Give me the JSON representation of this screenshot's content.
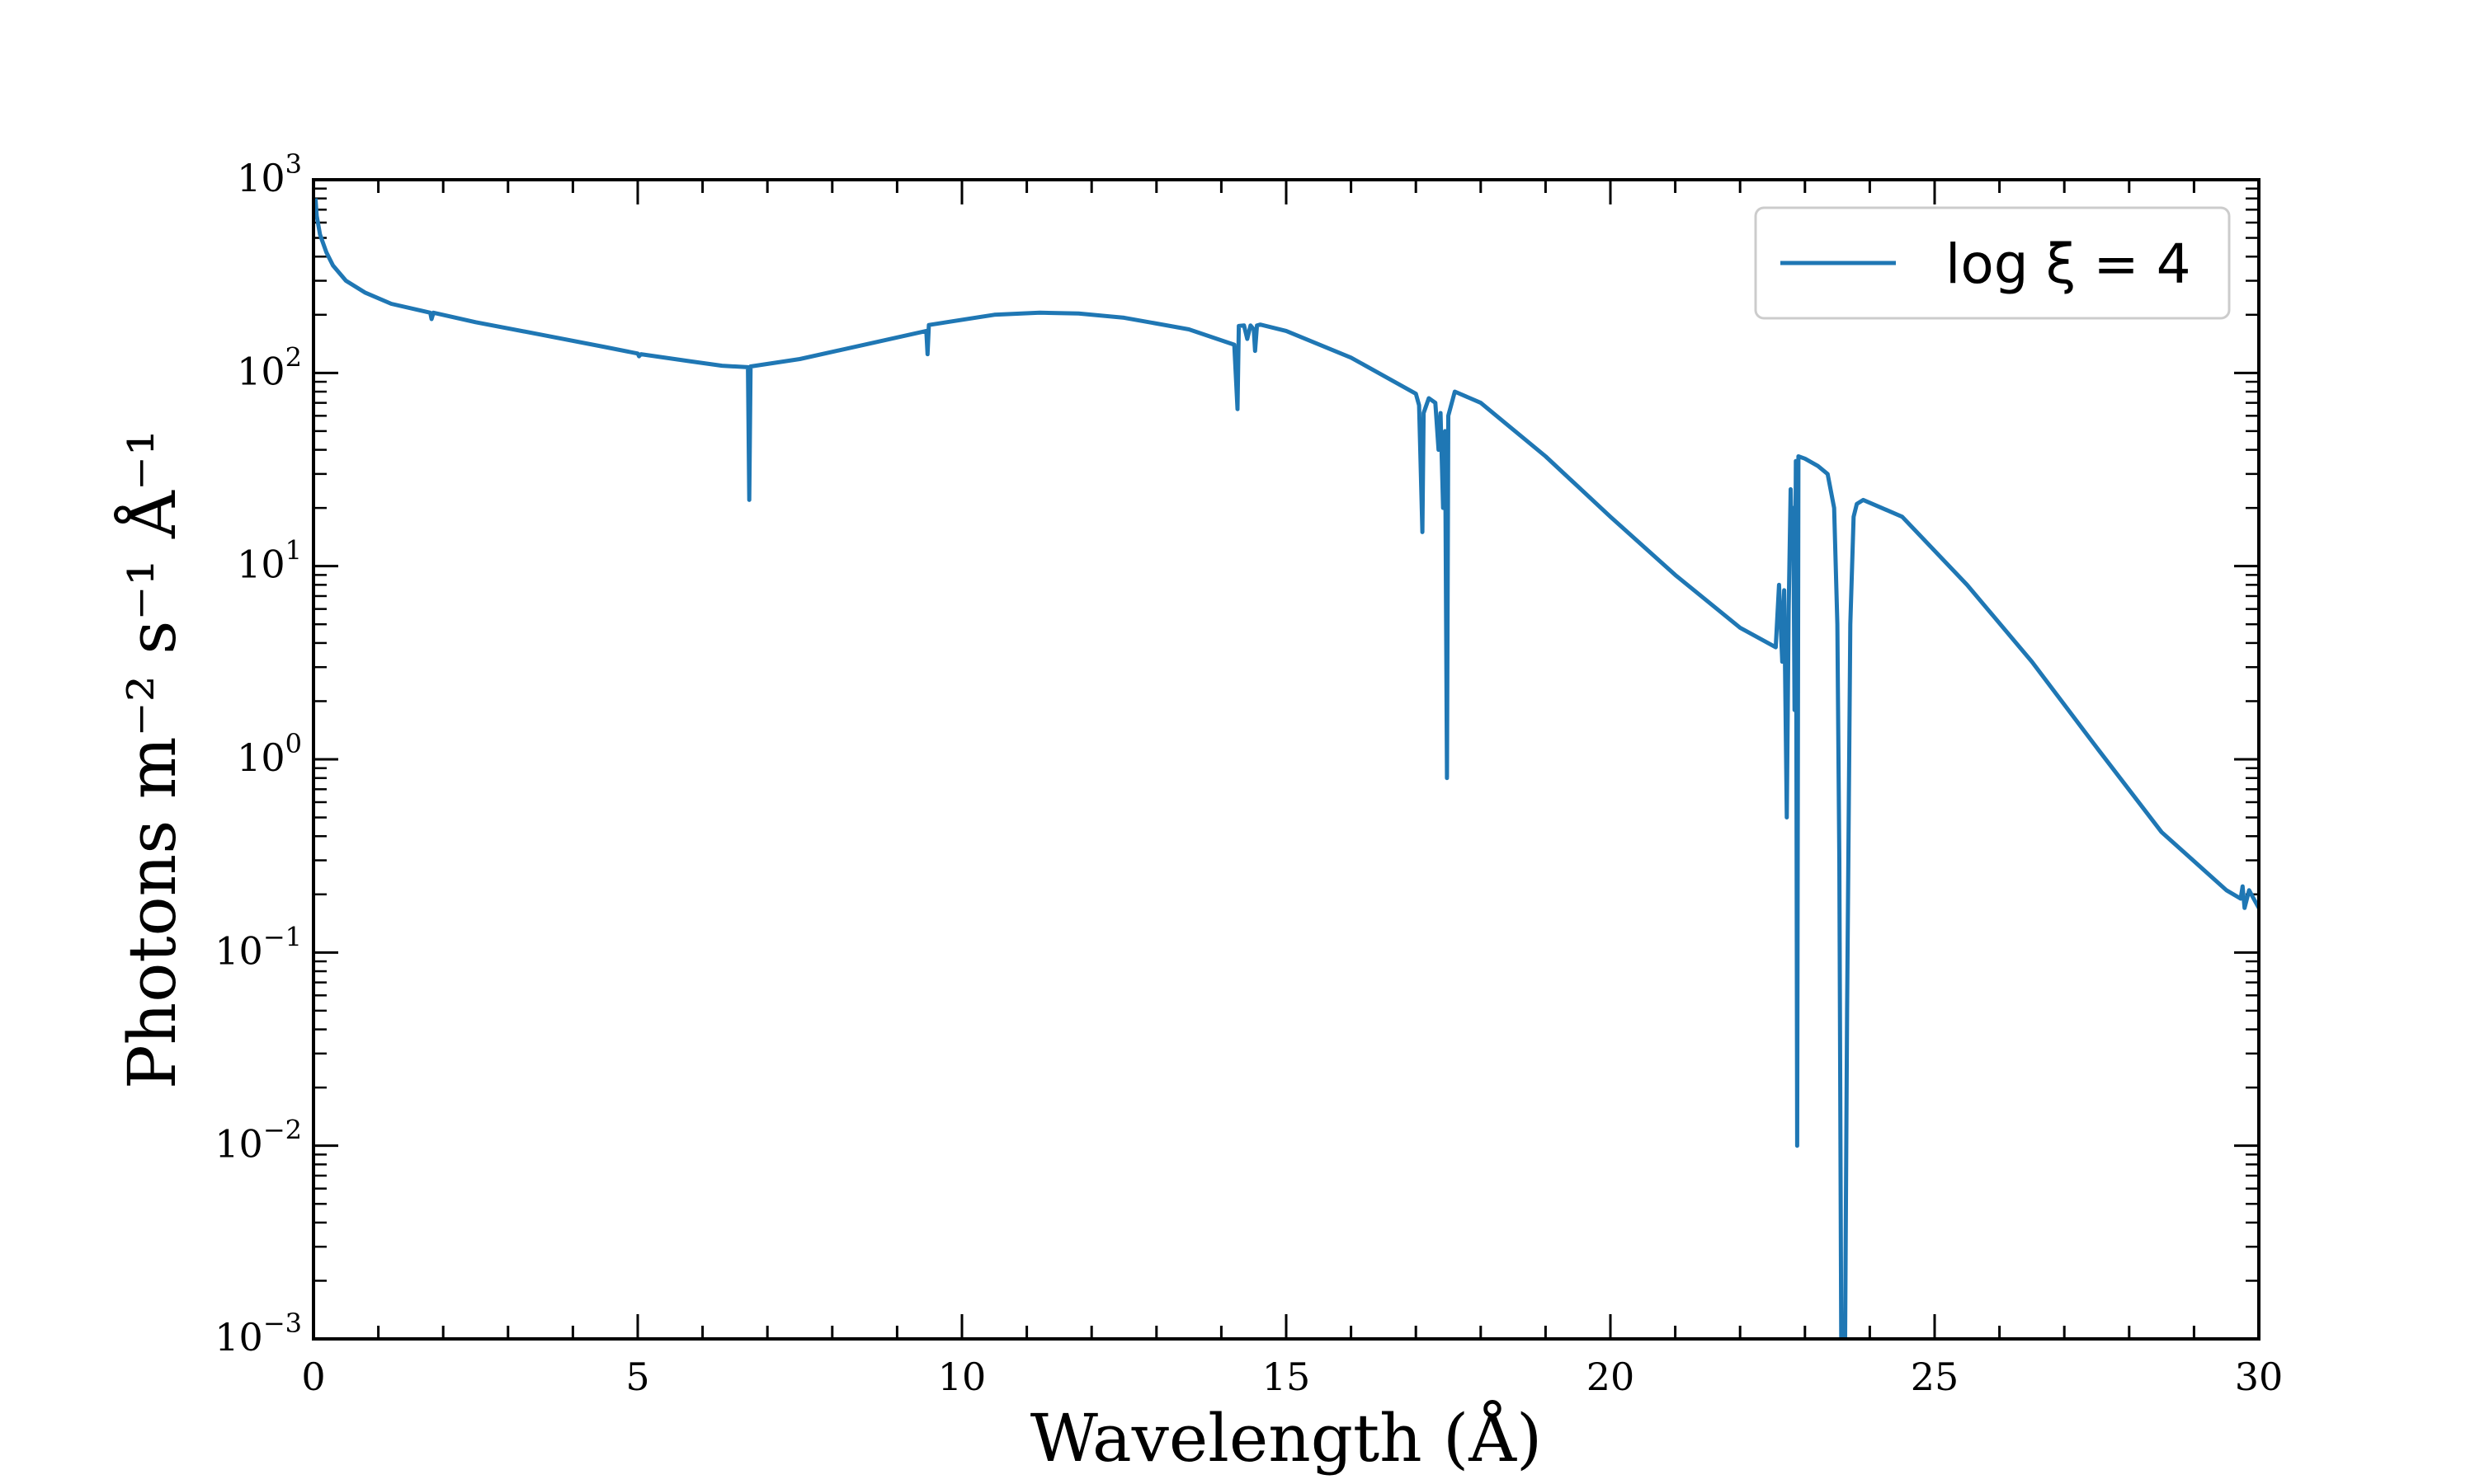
{
  "chart_data": {
    "type": "line",
    "xlabel": "Wavelength (Å)",
    "ylabel": "Photons m⁻² s⁻¹ Å⁻¹",
    "xlim": [
      0,
      30
    ],
    "ylim": [
      0.001,
      1000
    ],
    "y_scale": "log",
    "grid": false,
    "legend_position": "top-right",
    "x_ticks": [
      {
        "value": 0,
        "label": "0"
      },
      {
        "value": 5,
        "label": "5"
      },
      {
        "value": 10,
        "label": "10"
      },
      {
        "value": 15,
        "label": "15"
      },
      {
        "value": 20,
        "label": "20"
      },
      {
        "value": 25,
        "label": "25"
      },
      {
        "value": 30,
        "label": "30"
      }
    ],
    "y_ticks": [
      {
        "value": 1000,
        "base": "10",
        "exp": "3"
      },
      {
        "value": 100,
        "base": "10",
        "exp": "2"
      },
      {
        "value": 10,
        "base": "10",
        "exp": "1"
      },
      {
        "value": 1,
        "base": "10",
        "exp": "0"
      },
      {
        "value": 0.1,
        "base": "10",
        "exp": "−1"
      },
      {
        "value": 0.01,
        "base": "10",
        "exp": "−2"
      },
      {
        "value": 0.001,
        "base": "10",
        "exp": "−3"
      }
    ],
    "series": [
      {
        "name": "log ξ = 4",
        "color": "#1f77b4",
        "points": [
          [
            0.03,
            800
          ],
          [
            0.05,
            650
          ],
          [
            0.1,
            520
          ],
          [
            0.2,
            420
          ],
          [
            0.3,
            360
          ],
          [
            0.5,
            300
          ],
          [
            0.8,
            260
          ],
          [
            1.2,
            228
          ],
          [
            1.8,
            205
          ],
          [
            1.82,
            190
          ],
          [
            1.85,
            205
          ],
          [
            2.5,
            183
          ],
          [
            3.5,
            158
          ],
          [
            4.5,
            136
          ],
          [
            5.0,
            126
          ],
          [
            5.02,
            122
          ],
          [
            5.05,
            125
          ],
          [
            5.8,
            115
          ],
          [
            6.3,
            109
          ],
          [
            6.7,
            107
          ],
          [
            6.72,
            22
          ],
          [
            6.74,
            108
          ],
          [
            7.5,
            118
          ],
          [
            8.5,
            140
          ],
          [
            9.45,
            165
          ],
          [
            9.47,
            125
          ],
          [
            9.49,
            177
          ],
          [
            10.5,
            200
          ],
          [
            11.2,
            205
          ],
          [
            11.8,
            203
          ],
          [
            12.5,
            193
          ],
          [
            13.5,
            168
          ],
          [
            14.2,
            140
          ],
          [
            14.25,
            65
          ],
          [
            14.27,
            175
          ],
          [
            14.35,
            176
          ],
          [
            14.4,
            150
          ],
          [
            14.45,
            176
          ],
          [
            14.5,
            168
          ],
          [
            14.52,
            130
          ],
          [
            14.55,
            176
          ],
          [
            14.6,
            178
          ],
          [
            15.0,
            165
          ],
          [
            16.0,
            120
          ],
          [
            17.0,
            78
          ],
          [
            17.05,
            68
          ],
          [
            17.1,
            15
          ],
          [
            17.12,
            62
          ],
          [
            17.2,
            74
          ],
          [
            17.3,
            70
          ],
          [
            17.35,
            40
          ],
          [
            17.38,
            62
          ],
          [
            17.42,
            20
          ],
          [
            17.45,
            50
          ],
          [
            17.48,
            0.8
          ],
          [
            17.5,
            60
          ],
          [
            17.6,
            80
          ],
          [
            18.0,
            70
          ],
          [
            19.0,
            37
          ],
          [
            20.0,
            18
          ],
          [
            21.0,
            9.0
          ],
          [
            22.0,
            4.8
          ],
          [
            22.55,
            3.8
          ],
          [
            22.6,
            8.0
          ],
          [
            22.65,
            3.2
          ],
          [
            22.68,
            7.5
          ],
          [
            22.72,
            0.5
          ],
          [
            22.75,
            6.0
          ],
          [
            22.78,
            25
          ],
          [
            22.8,
            12
          ],
          [
            22.82,
            20
          ],
          [
            22.84,
            1.8
          ],
          [
            22.86,
            35
          ],
          [
            22.88,
            0.01
          ],
          [
            22.9,
            37
          ],
          [
            23.0,
            36
          ],
          [
            23.2,
            33
          ],
          [
            23.35,
            30
          ],
          [
            23.45,
            20
          ],
          [
            23.5,
            5
          ],
          [
            23.53,
            0.3
          ],
          [
            23.56,
            0.001
          ],
          [
            23.62,
            0.001
          ],
          [
            23.65,
            0.05
          ],
          [
            23.7,
            5
          ],
          [
            23.75,
            18
          ],
          [
            23.8,
            21
          ],
          [
            23.9,
            22
          ],
          [
            24.5,
            18
          ],
          [
            25.5,
            8
          ],
          [
            26.5,
            3.2
          ],
          [
            27.5,
            1.15
          ],
          [
            28.5,
            0.42
          ],
          [
            29.5,
            0.21
          ],
          [
            29.72,
            0.19
          ],
          [
            29.75,
            0.22
          ],
          [
            29.78,
            0.17
          ],
          [
            29.85,
            0.21
          ],
          [
            29.92,
            0.19
          ],
          [
            30.0,
            0.17
          ]
        ]
      }
    ]
  }
}
